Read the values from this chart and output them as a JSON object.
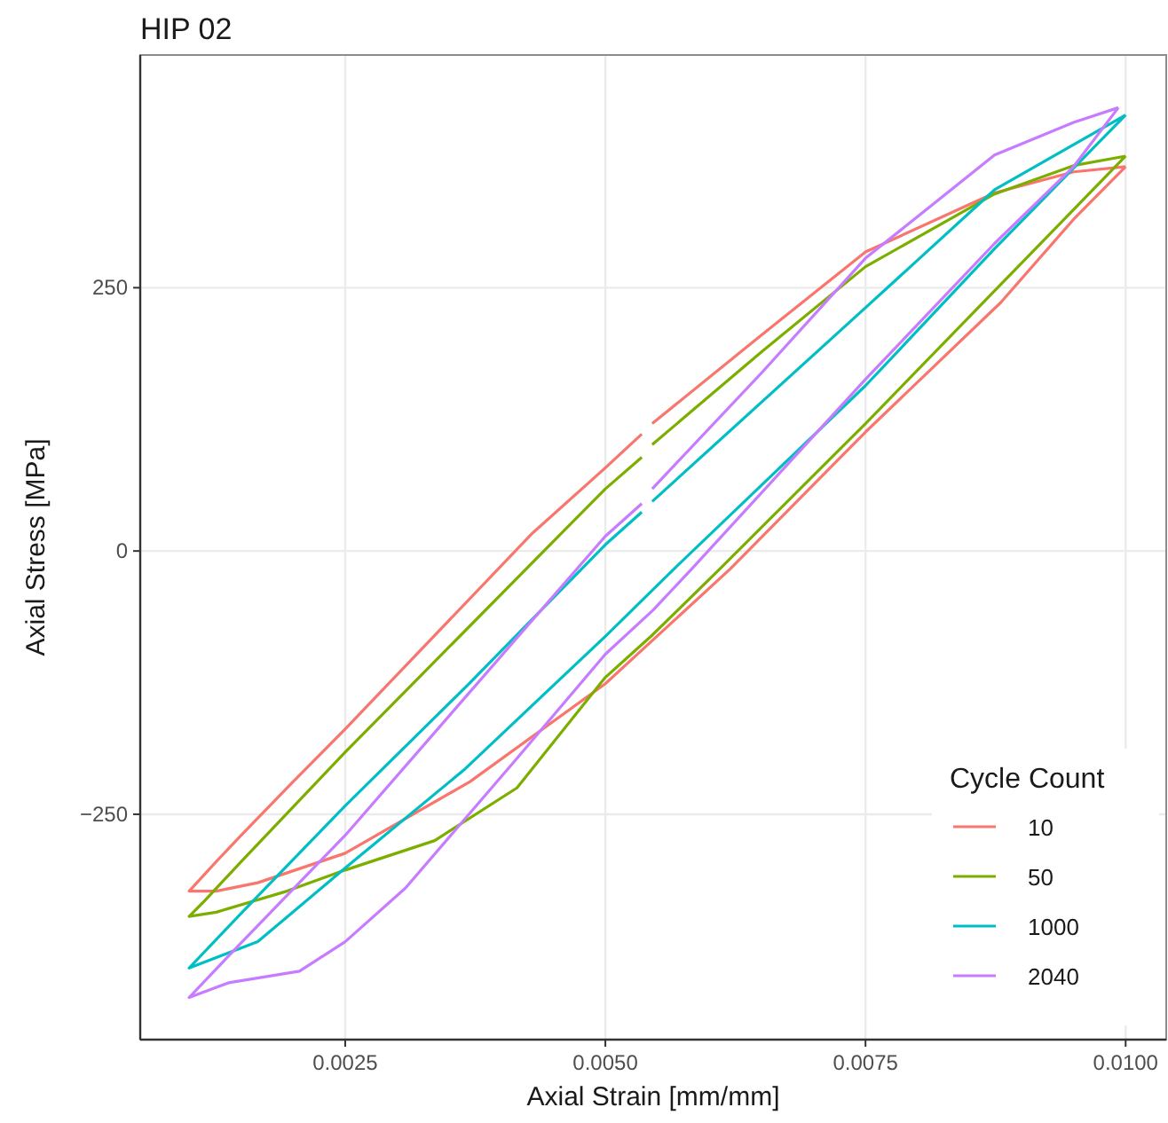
{
  "chart_data": {
    "type": "line",
    "title": "HIP 02",
    "xlabel": "Axial Strain [mm/mm]",
    "ylabel": "Axial Stress [MPa]",
    "legend_title": "Cycle Count",
    "legend": "bottom right",
    "grid": true,
    "line_style": "solid",
    "xlim": [
      0.00053,
      0.01039
    ],
    "ylim": [
      -464,
      471
    ],
    "xticks": [
      {
        "value": 0.0025,
        "label": "0.0025"
      },
      {
        "value": 0.005,
        "label": "0.0050"
      },
      {
        "value": 0.0075,
        "label": "0.0075"
      },
      {
        "value": 0.01,
        "label": "0.0100"
      }
    ],
    "yticks": [
      {
        "value": -250,
        "label": "−250"
      },
      0,
      250
    ],
    "series": [
      {
        "name": "10",
        "color": "#f8766d",
        "x": [
          0.01,
          0.0095,
          0.00874,
          0.0075,
          0.0065,
          0.00545,
          0.0054,
          0.00535,
          0.005,
          0.0043,
          0.0025,
          0.002,
          0.0015,
          0.00126,
          0.001,
          0.00126,
          0.00166,
          0.0025,
          0.0037,
          0.005,
          0.0062,
          0.0075,
          0.0088,
          0.0095,
          0.01
        ],
        "values": [
          365,
          360,
          340,
          284,
          205,
          121,
          null,
          111,
          79,
          17,
          -169,
          -219,
          -270,
          -295,
          -323,
          -323,
          -315,
          -287,
          -219,
          -126,
          -17,
          113,
          236,
          315,
          365
        ]
      },
      {
        "name": "50",
        "color": "#7cae00",
        "x": [
          0.01,
          0.0095,
          0.00874,
          0.0075,
          0.0065,
          0.00545,
          0.0054,
          0.00535,
          0.005,
          0.00458,
          0.0025,
          0.002,
          0.0015,
          0.00115,
          0.001,
          0.00126,
          0.00194,
          0.0025,
          0.00336,
          0.00415,
          0.005,
          0.00546,
          0.0061,
          0.0075,
          0.00874,
          0.01
        ],
        "values": [
          375,
          366,
          339,
          270,
          189,
          101,
          null,
          89,
          59,
          17,
          -191,
          -243,
          -295,
          -332,
          -347,
          -343,
          -323,
          -303,
          -275,
          -225,
          -120,
          -79,
          -17,
          121,
          247,
          375
        ]
      },
      {
        "name": "1000",
        "color": "#00bfc4",
        "x": [
          0.01,
          0.00874,
          0.0075,
          0.00545,
          0.0054,
          0.00535,
          0.005,
          0.0037,
          0.0025,
          0.0015,
          0.001,
          0.00166,
          0.0025,
          0.00364,
          0.005,
          0.00566,
          0.0075,
          0.00874,
          0.01
        ],
        "values": [
          414,
          343,
          231,
          47,
          null,
          37,
          6,
          -125,
          -242,
          -344,
          -396,
          -371,
          -301,
          -208,
          -81,
          -17,
          157,
          287,
          414
        ]
      },
      {
        "name": "2040",
        "color": "#c77cff",
        "x": [
          0.00993,
          0.0095,
          0.00874,
          0.0075,
          0.0065,
          0.00545,
          0.0054,
          0.00535,
          0.005,
          0.0025,
          0.0015,
          0.001,
          0.00138,
          0.00206,
          0.0025,
          0.00308,
          0.00415,
          0.005,
          0.00546,
          0.00583,
          0.0075,
          0.00874,
          0.0095,
          0.00993
        ],
        "values": [
          421,
          407,
          376,
          278,
          169,
          59,
          null,
          45,
          14,
          -270,
          -372,
          -424,
          -410,
          -399,
          -371,
          -320,
          -197,
          -98,
          -56,
          -17,
          163,
          292,
          365,
          421
        ]
      }
    ]
  }
}
